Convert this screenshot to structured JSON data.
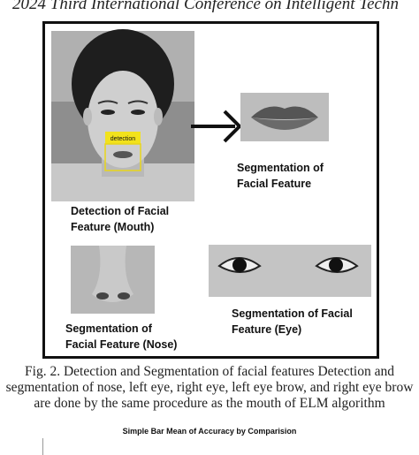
{
  "header": {
    "title": "2024 Third International Conference on Intelligent Techn"
  },
  "figure": {
    "detection_tag": "detection",
    "mouth_label": [
      "Detection of Facial",
      "Feature (Mouth)"
    ],
    "segmentation_label": [
      "Segmentation of",
      "Facial Feature"
    ],
    "nose_label": [
      "Segmentation of",
      "Facial Feature (Nose)"
    ],
    "eye_label": [
      "Segmentation of Facial",
      "Feature (Eye)"
    ]
  },
  "caption": {
    "lines": [
      "Fig. 2. Detection and Segmentation of facial features Detection and",
      "segmentation of nose, left eye, right eye, left eye brow, and right eye brow",
      "are done by the same procedure as the mouth of ELM algorithm"
    ]
  },
  "next_section": {
    "title": "Simple Bar Mean of Accuracy by Comparision"
  }
}
